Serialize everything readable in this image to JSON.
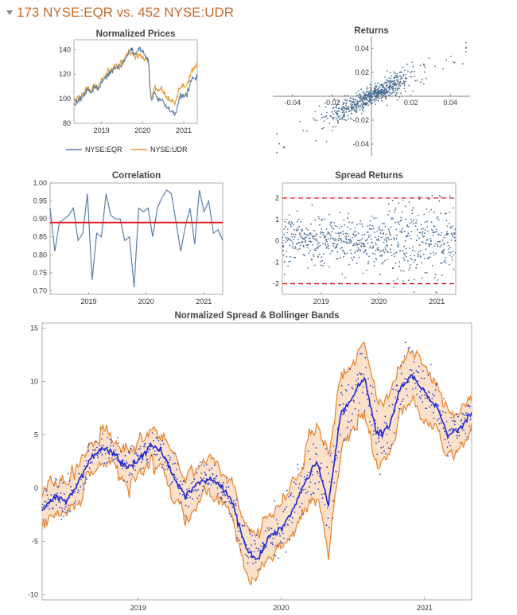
{
  "header": {
    "title": "173 NYSE:EQR vs. 452 NYSE:UDR",
    "toggle_icon": "disclosure-triangle-icon"
  },
  "colors": {
    "eqr": "#5b7fa6",
    "udr": "#e8962e",
    "mean_line": "#e0141e",
    "scatter": "#4a6d92",
    "band_line": "#e8812c",
    "band_fill": "#fbe1c9",
    "spread_line": "#1f27d6",
    "spread_points": "#3340c8",
    "title_color": "#c76b2e"
  },
  "chart_data": [
    {
      "id": "prices",
      "type": "line",
      "title": "Normalized Prices",
      "x_range": [
        "2018-05-01",
        "2021-05-01"
      ],
      "x_ticks": [
        "2019",
        "2020",
        "2021"
      ],
      "ylim": [
        80,
        148
      ],
      "y_ticks": [
        80,
        100,
        120,
        140
      ],
      "legend_position": "bottom",
      "series": [
        {
          "name": "NYSE:EQR",
          "points": [
            [
              "2018-05-01",
              96
            ],
            [
              "2018-07-01",
              100
            ],
            [
              "2018-09-01",
              108
            ],
            [
              "2018-10-01",
              104
            ],
            [
              "2018-11-01",
              110
            ],
            [
              "2018-12-01",
              106
            ],
            [
              "2019-01-01",
              114
            ],
            [
              "2019-03-01",
              120
            ],
            [
              "2019-05-01",
              124
            ],
            [
              "2019-07-01",
              128
            ],
            [
              "2019-08-15",
              134
            ],
            [
              "2019-09-01",
              138
            ],
            [
              "2019-10-01",
              140
            ],
            [
              "2019-11-01",
              136
            ],
            [
              "2019-12-01",
              142
            ],
            [
              "2020-01-01",
              138
            ],
            [
              "2020-02-01",
              134
            ],
            [
              "2020-02-25",
              130
            ],
            [
              "2020-03-05",
              110
            ],
            [
              "2020-03-20",
              98
            ],
            [
              "2020-04-15",
              106
            ],
            [
              "2020-05-15",
              98
            ],
            [
              "2020-06-15",
              100
            ],
            [
              "2020-07-15",
              96
            ],
            [
              "2020-08-15",
              92
            ],
            [
              "2020-09-15",
              90
            ],
            [
              "2020-10-15",
              86
            ],
            [
              "2020-11-15",
              98
            ],
            [
              "2020-12-15",
              103
            ],
            [
              "2021-01-15",
              102
            ],
            [
              "2021-02-15",
              108
            ],
            [
              "2021-03-15",
              118
            ],
            [
              "2021-04-15",
              116
            ],
            [
              "2021-05-01",
              120
            ]
          ]
        },
        {
          "name": "NYSE:UDR",
          "points": [
            [
              "2018-05-01",
              98
            ],
            [
              "2018-07-01",
              102
            ],
            [
              "2018-09-01",
              110
            ],
            [
              "2018-10-01",
              106
            ],
            [
              "2018-11-01",
              112
            ],
            [
              "2018-12-01",
              108
            ],
            [
              "2019-01-01",
              116
            ],
            [
              "2019-03-01",
              122
            ],
            [
              "2019-05-01",
              126
            ],
            [
              "2019-07-01",
              130
            ],
            [
              "2019-08-15",
              135
            ],
            [
              "2019-09-01",
              138
            ],
            [
              "2019-10-01",
              137
            ],
            [
              "2019-11-01",
              133
            ],
            [
              "2019-12-01",
              136
            ],
            [
              "2020-01-01",
              134
            ],
            [
              "2020-02-01",
              132
            ],
            [
              "2020-02-25",
              128
            ],
            [
              "2020-03-05",
              112
            ],
            [
              "2020-03-20",
              100
            ],
            [
              "2020-04-15",
              110
            ],
            [
              "2020-05-15",
              106
            ],
            [
              "2020-06-15",
              108
            ],
            [
              "2020-07-15",
              104
            ],
            [
              "2020-08-15",
              100
            ],
            [
              "2020-09-15",
              98
            ],
            [
              "2020-10-15",
              96
            ],
            [
              "2020-11-15",
              106
            ],
            [
              "2020-12-15",
              110
            ],
            [
              "2021-01-15",
              110
            ],
            [
              "2021-02-15",
              116
            ],
            [
              "2021-03-15",
              124
            ],
            [
              "2021-04-15",
              126
            ],
            [
              "2021-05-01",
              130
            ]
          ]
        }
      ]
    },
    {
      "id": "returns",
      "type": "scatter",
      "title": "Returns",
      "xlim": [
        -0.05,
        0.05
      ],
      "ylim": [
        -0.05,
        0.05
      ],
      "x_ticks": [
        "-0.04",
        "-0.02",
        "0.02",
        "0.04"
      ],
      "y_ticks": [
        "0.04",
        "0.02",
        "-0.02",
        "-0.04"
      ],
      "n_points": 640,
      "slope": 0.82,
      "spread_sd": 0.0035
    },
    {
      "id": "correlation",
      "type": "line",
      "title": "Correlation",
      "x_range": [
        "2018-05-01",
        "2021-05-01"
      ],
      "x_ticks": [
        "2019",
        "2020",
        "2021"
      ],
      "ylim": [
        0.69,
        1.0
      ],
      "y_ticks": [
        "1.00",
        "0.95",
        "0.90",
        "0.85",
        "0.80",
        "0.75",
        "0.70"
      ],
      "mean": 0.89,
      "values": [
        0.93,
        0.81,
        0.89,
        0.9,
        0.91,
        0.93,
        0.84,
        0.86,
        0.97,
        0.73,
        0.86,
        0.85,
        0.97,
        0.91,
        0.9,
        0.9,
        0.84,
        0.85,
        0.71,
        0.93,
        0.92,
        0.93,
        0.85,
        0.93,
        0.96,
        0.98,
        0.97,
        0.89,
        0.81,
        0.88,
        0.93,
        0.83,
        0.98,
        0.92,
        0.95,
        0.86,
        0.87,
        0.84
      ]
    },
    {
      "id": "spread_returns",
      "type": "scatter",
      "title": "Spread Returns",
      "x_range": [
        "2018-05-01",
        "2021-05-01"
      ],
      "x_ticks": [
        "2019",
        "2020",
        "2021"
      ],
      "ylim": [
        -2.5,
        2.7
      ],
      "y_ticks": [
        "2",
        "1",
        "0",
        "-1",
        "-2"
      ],
      "bands": [
        2,
        -2
      ],
      "n_points": 720
    },
    {
      "id": "bollinger",
      "type": "area",
      "title": "Normalized Spread & Bollinger Bands",
      "x_range": [
        "2018-05-01",
        "2021-05-01"
      ],
      "x_ticks": [
        "2019",
        "2020",
        "2021"
      ],
      "ylim": [
        -10.5,
        15.5
      ],
      "y_ticks": [
        "15",
        "10",
        "5",
        "0",
        "-5",
        "-10"
      ],
      "mean_path": [
        [
          "2018-05-01",
          -2
        ],
        [
          "2018-06-01",
          -0.8
        ],
        [
          "2018-07-01",
          -1.2
        ],
        [
          "2018-08-01",
          0.5
        ],
        [
          "2018-09-01",
          2.8
        ],
        [
          "2018-10-01",
          3.8
        ],
        [
          "2018-11-01",
          3.2
        ],
        [
          "2018-12-01",
          1.8
        ],
        [
          "2019-01-01",
          2.5
        ],
        [
          "2019-02-01",
          4.0
        ],
        [
          "2019-03-01",
          3.5
        ],
        [
          "2019-04-01",
          1.2
        ],
        [
          "2019-05-01",
          -0.8
        ],
        [
          "2019-06-01",
          0.5
        ],
        [
          "2019-07-01",
          1.0
        ],
        [
          "2019-08-01",
          0.2
        ],
        [
          "2019-09-01",
          -1.5
        ],
        [
          "2019-10-01",
          -5.5
        ],
        [
          "2019-11-01",
          -6.8
        ],
        [
          "2019-12-01",
          -4.5
        ],
        [
          "2020-01-01",
          -3.8
        ],
        [
          "2020-02-01",
          -2.0
        ],
        [
          "2020-03-01",
          0.5
        ],
        [
          "2020-04-01",
          2.5
        ],
        [
          "2020-05-01",
          -1.5
        ],
        [
          "2020-06-01",
          7.0
        ],
        [
          "2020-07-01",
          8.5
        ],
        [
          "2020-08-01",
          10.5
        ],
        [
          "2020-09-01",
          5.0
        ],
        [
          "2020-10-01",
          5.5
        ],
        [
          "2020-11-01",
          9.5
        ],
        [
          "2020-12-01",
          10.5
        ],
        [
          "2021-01-01",
          9.0
        ],
        [
          "2021-02-01",
          7.5
        ],
        [
          "2021-03-01",
          5.0
        ],
        [
          "2021-04-01",
          5.5
        ],
        [
          "2021-05-01",
          7.0
        ]
      ],
      "band_halfwidth": [
        1.4,
        1.6,
        1.7,
        1.6,
        1.4,
        1.3,
        1.5,
        1.6,
        1.5,
        1.3,
        1.4,
        1.8,
        1.7,
        1.5,
        1.4,
        1.5,
        1.8,
        2.2,
        2.1,
        2.0,
        2.2,
        2.4,
        2.7,
        3.3,
        4.6,
        3.4,
        2.9,
        3.0,
        2.8,
        2.6,
        2.4,
        2.5,
        2.3,
        2.1,
        1.9,
        1.7,
        1.6
      ],
      "n_points": 760
    }
  ]
}
